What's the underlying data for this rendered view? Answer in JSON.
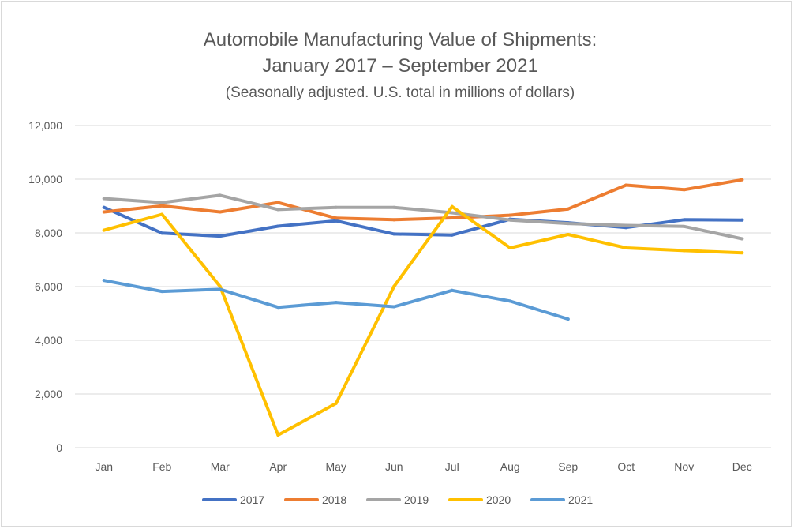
{
  "chart_data": {
    "type": "line",
    "title": "Automobile Manufacturing Value of Shipments:",
    "title_line2": "January 2017 – September 2021",
    "subtitle": "(Seasonally adjusted. U.S. total in millions of dollars)",
    "categories": [
      "Jan",
      "Feb",
      "Mar",
      "Apr",
      "May",
      "Jun",
      "Jul",
      "Aug",
      "Sep",
      "Oct",
      "Nov",
      "Dec"
    ],
    "ylim": [
      0,
      12000
    ],
    "yticks": [
      0,
      2000,
      4000,
      6000,
      8000,
      10000,
      12000
    ],
    "ytick_labels": [
      "0",
      "2,000",
      "4,000",
      "6,000",
      "8,000",
      "10,000",
      "12,000"
    ],
    "grid": true,
    "legend_position": "bottom",
    "series": [
      {
        "name": "2017",
        "color": "#4472C4",
        "values": [
          8950,
          7990,
          7880,
          8250,
          8450,
          7960,
          7920,
          8510,
          8380,
          8200,
          8490,
          8480
        ]
      },
      {
        "name": "2018",
        "color": "#ED7D31",
        "values": [
          8780,
          9010,
          8780,
          9130,
          8550,
          8490,
          8560,
          8660,
          8890,
          9780,
          9610,
          9980
        ]
      },
      {
        "name": "2019",
        "color": "#A5A5A5",
        "values": [
          9280,
          9130,
          9400,
          8870,
          8950,
          8950,
          8750,
          8480,
          8350,
          8280,
          8240,
          7780
        ]
      },
      {
        "name": "2020",
        "color": "#FFC000",
        "values": [
          8100,
          8690,
          6010,
          470,
          1650,
          6010,
          8980,
          7440,
          7940,
          7440,
          7340,
          7260
        ]
      },
      {
        "name": "2021",
        "color": "#5B9BD5",
        "values": [
          6230,
          5820,
          5900,
          5230,
          5410,
          5250,
          5860,
          5460,
          4790,
          null,
          null,
          null
        ]
      }
    ]
  }
}
